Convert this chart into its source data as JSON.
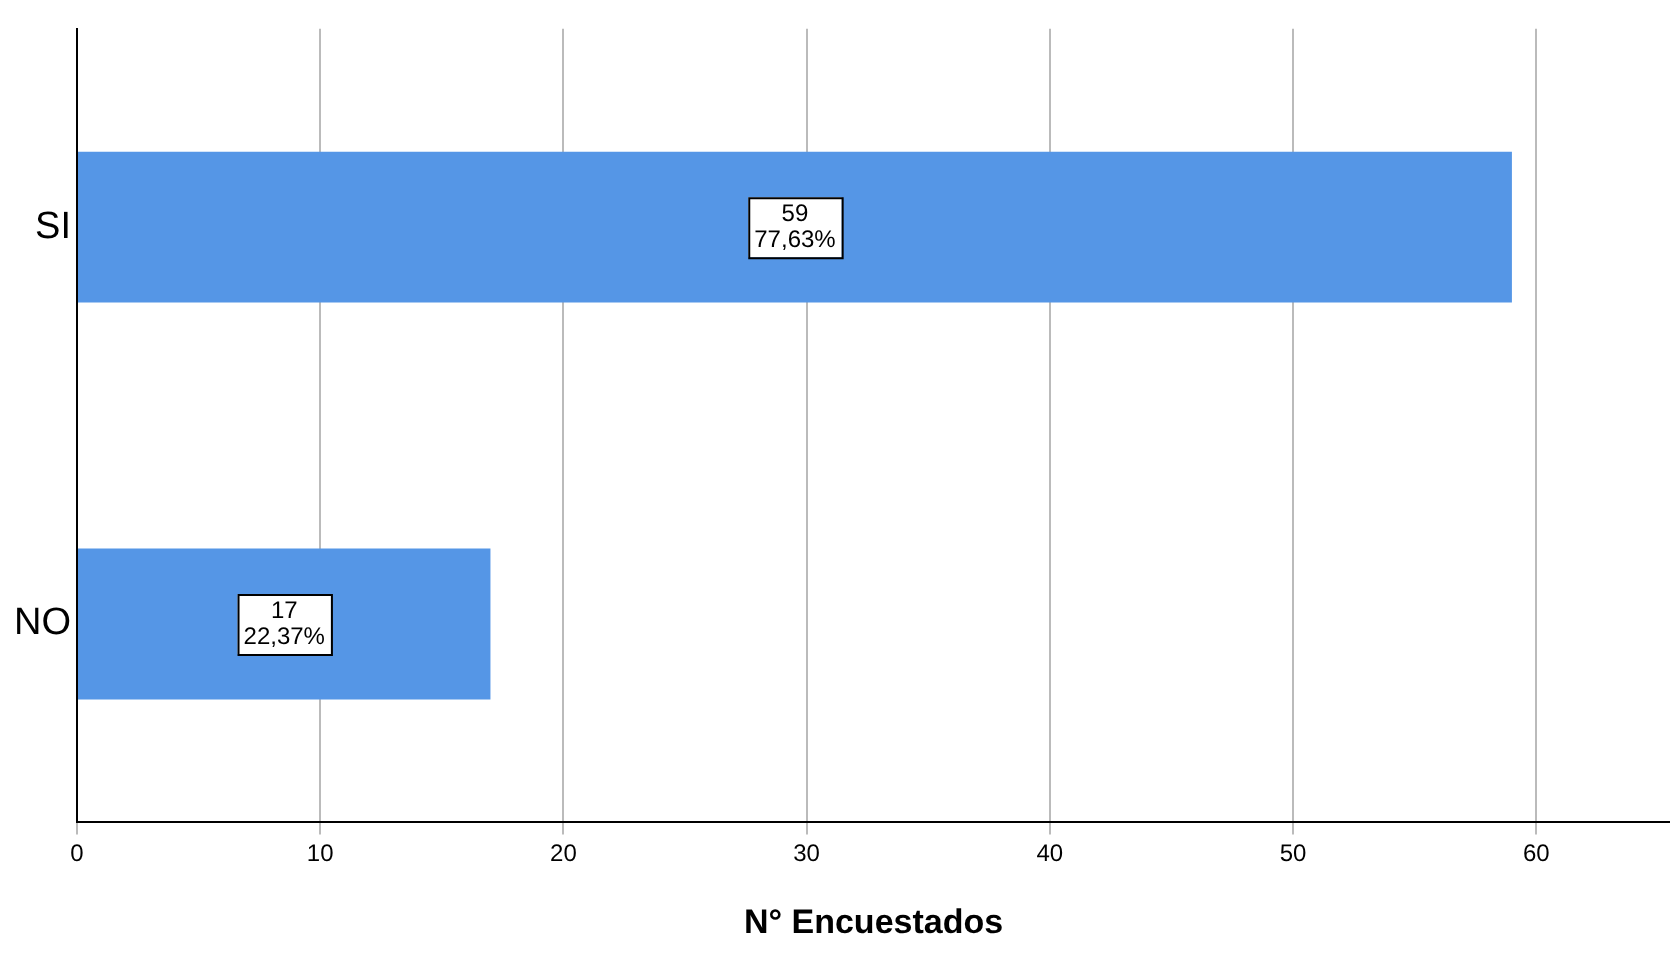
{
  "chart_data": {
    "type": "bar",
    "orientation": "horizontal",
    "xlabel": "N° Encuestados",
    "categories": [
      "SI",
      "NO"
    ],
    "values": [
      59,
      17
    ],
    "color": "#5596e6",
    "value_labels": [
      "59\n77,63%",
      "17\n22,37%"
    ],
    "xlim": [
      0,
      65.5
    ],
    "xticks": [
      0,
      10,
      20,
      30,
      40,
      50,
      60
    ],
    "grid": "x",
    "legend": false
  }
}
